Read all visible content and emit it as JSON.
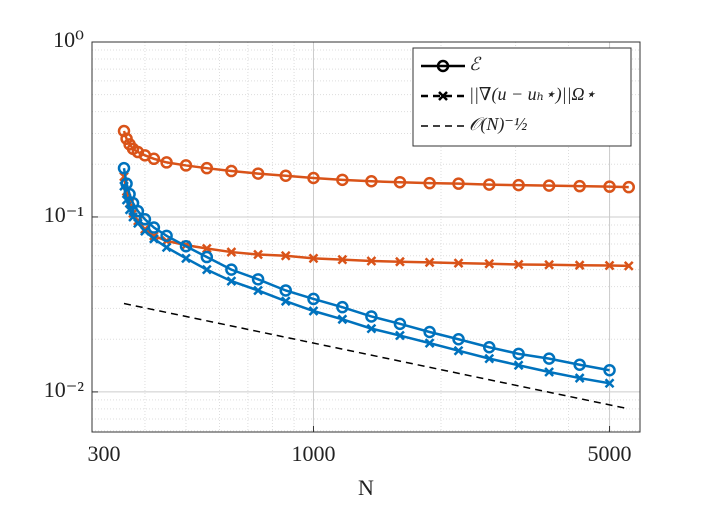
{
  "chart_data": {
    "type": "line",
    "x_label": "N",
    "log_x": true,
    "log_y": true,
    "grid": true,
    "legend_position": "upper right",
    "xlim": [
      300,
      5900
    ],
    "ylim": [
      0.0059,
      1
    ],
    "xticks": [
      300,
      1000,
      5000
    ],
    "yticks": [
      {
        "value": 1,
        "label": "10⁰"
      },
      {
        "value": 0.1,
        "label": "10⁻¹"
      },
      {
        "value": 0.01,
        "label": "10⁻²"
      }
    ],
    "legend": [
      {
        "label": "ℰ",
        "marker": "o",
        "dash": false
      },
      {
        "label": "||∇(u − uₕ⋆)||Ω⋆",
        "marker": "x",
        "dash": true
      },
      {
        "label": "𝒪(N)⁻½",
        "marker": "none",
        "dash": true
      }
    ],
    "series": [
      {
        "color": "#d95319",
        "marker": "o",
        "dash": false,
        "x": [
          357,
          362,
          368,
          375,
          385,
          400,
          420,
          450,
          500,
          560,
          640,
          740,
          860,
          1000,
          1170,
          1370,
          1600,
          1880,
          2200,
          2600,
          3050,
          3600,
          4250,
          5000,
          5550
        ],
        "values": [
          0.31,
          0.28,
          0.26,
          0.245,
          0.235,
          0.225,
          0.215,
          0.205,
          0.197,
          0.19,
          0.183,
          0.177,
          0.172,
          0.167,
          0.163,
          0.16,
          0.158,
          0.156,
          0.155,
          0.153,
          0.152,
          0.151,
          0.15,
          0.149,
          0.148
        ]
      },
      {
        "color": "#d95319",
        "marker": "x",
        "dash": false,
        "x": [
          357,
          362,
          368,
          375,
          385,
          400,
          420,
          450,
          500,
          560,
          640,
          740,
          860,
          1000,
          1170,
          1370,
          1600,
          1880,
          2200,
          2600,
          3050,
          3600,
          4250,
          5000,
          5550
        ],
        "values": [
          0.17,
          0.14,
          0.12,
          0.105,
          0.095,
          0.085,
          0.078,
          0.073,
          0.069,
          0.066,
          0.063,
          0.061,
          0.06,
          0.058,
          0.057,
          0.056,
          0.0555,
          0.055,
          0.0545,
          0.054,
          0.0535,
          0.0533,
          0.053,
          0.0528,
          0.0525
        ]
      },
      {
        "color": "#0072bd",
        "marker": "o",
        "dash": false,
        "x": [
          357,
          362,
          368,
          375,
          385,
          400,
          420,
          450,
          500,
          560,
          640,
          740,
          860,
          1000,
          1170,
          1370,
          1600,
          1880,
          2200,
          2600,
          3050,
          3600,
          4250,
          5000
        ],
        "values": [
          0.19,
          0.155,
          0.135,
          0.12,
          0.108,
          0.097,
          0.087,
          0.078,
          0.068,
          0.059,
          0.05,
          0.044,
          0.038,
          0.034,
          0.0305,
          0.027,
          0.0245,
          0.022,
          0.02,
          0.018,
          0.0165,
          0.0155,
          0.0143,
          0.0133
        ]
      },
      {
        "color": "#0072bd",
        "marker": "x",
        "dash": false,
        "x": [
          357,
          362,
          368,
          375,
          385,
          400,
          420,
          450,
          500,
          560,
          640,
          740,
          860,
          1000,
          1170,
          1370,
          1600,
          1880,
          2200,
          2600,
          3050,
          3600,
          4250,
          5000
        ],
        "values": [
          0.15,
          0.125,
          0.11,
          0.1,
          0.092,
          0.083,
          0.075,
          0.067,
          0.058,
          0.05,
          0.043,
          0.038,
          0.033,
          0.029,
          0.026,
          0.023,
          0.021,
          0.019,
          0.0172,
          0.0155,
          0.0142,
          0.013,
          0.012,
          0.0112
        ]
      },
      {
        "color": "#000000",
        "marker": "none",
        "dash": true,
        "x": [
          357,
          5550
        ],
        "values": [
          0.032,
          0.008
        ]
      }
    ]
  }
}
